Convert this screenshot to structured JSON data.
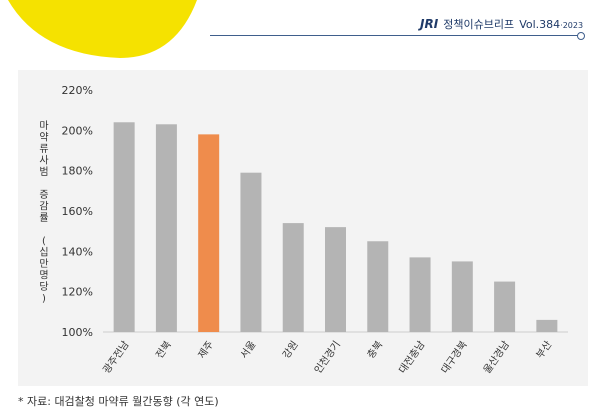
{
  "header": {
    "logo": "JRI",
    "series": "정책이슈브리프",
    "volume": "Vol.384",
    "year": "·2023"
  },
  "colors": {
    "accent_yellow": "#f5e200",
    "bar_default": "#b4b4b4",
    "bar_highlight": "#ef8c4c",
    "header_blue": "#1f3a68"
  },
  "chart_data": {
    "type": "bar",
    "ylabel": "마약류사범 증감률 (십만명당)",
    "ylim": [
      100,
      220
    ],
    "yticks": [
      "220%",
      "200%",
      "180%",
      "160%",
      "140%",
      "120%",
      "100%"
    ],
    "categories": [
      "광주전남",
      "전북",
      "제주",
      "서울",
      "강원",
      "인천경기",
      "충북",
      "대전충남",
      "대구경북",
      "울산경남",
      "부산"
    ],
    "values": [
      204,
      203,
      198,
      179,
      154,
      152,
      145,
      137,
      135,
      125,
      106
    ],
    "highlight": "제주",
    "grid": false
  },
  "caption": "* 자료: 대검찰청 마약류 월간동향 (각 연도)"
}
